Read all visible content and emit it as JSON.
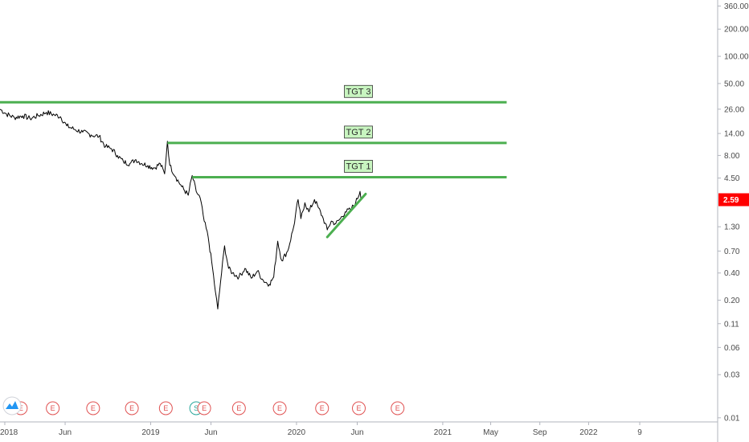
{
  "chart_data": {
    "type": "line",
    "scale": "log",
    "ylim": [
      0.009,
      420
    ],
    "xlim": [
      "2017-12-20",
      "2022-11-20"
    ],
    "y_ticks": [
      "360.00",
      "200.00",
      "100.00",
      "50.00",
      "26.00",
      "14.00",
      "8.00",
      "4.50",
      "2.59",
      "1.30",
      "0.70",
      "0.40",
      "0.20",
      "0.11",
      "0.06",
      "0.03",
      "0.01"
    ],
    "x_ticks": [
      {
        "label": "2018",
        "date": "2018-01-01"
      },
      {
        "label": "Jun",
        "date": "2018-06-01"
      },
      {
        "label": "2019",
        "date": "2019-01-01"
      },
      {
        "label": "Jun",
        "date": "2019-06-01"
      },
      {
        "label": "2020",
        "date": "2020-01-01"
      },
      {
        "label": "Jun",
        "date": "2020-06-01"
      },
      {
        "label": "2021",
        "date": "2021-01-01"
      },
      {
        "label": "May",
        "date": "2021-05-01"
      },
      {
        "label": "Sep",
        "date": "2021-09-01"
      },
      {
        "label": "2022",
        "date": "2022-01-01"
      },
      {
        "label": "9",
        "date": "2022-05-09"
      }
    ],
    "series": [
      {
        "color": "#000000",
        "points": [
          [
            "2017-12-20",
            26
          ],
          [
            "2018-01-05",
            23
          ],
          [
            "2018-01-25",
            21
          ],
          [
            "2018-02-15",
            22
          ],
          [
            "2018-03-05",
            20.5
          ],
          [
            "2018-03-25",
            22
          ],
          [
            "2018-04-15",
            24
          ],
          [
            "2018-05-05",
            22.5
          ],
          [
            "2018-05-20",
            21.5
          ],
          [
            "2018-06-05",
            17
          ],
          [
            "2018-06-25",
            15.5
          ],
          [
            "2018-07-15",
            14.5
          ],
          [
            "2018-08-05",
            13.5
          ],
          [
            "2018-08-25",
            13
          ],
          [
            "2018-09-10",
            10
          ],
          [
            "2018-09-25",
            9.5
          ],
          [
            "2018-10-10",
            8
          ],
          [
            "2018-10-25",
            6.8
          ],
          [
            "2018-11-10",
            6.5
          ],
          [
            "2018-11-25",
            7.2
          ],
          [
            "2018-12-10",
            6.5
          ],
          [
            "2018-12-25",
            6.2
          ],
          [
            "2019-01-10",
            5.8
          ],
          [
            "2019-01-25",
            6.5
          ],
          [
            "2019-02-05",
            5
          ],
          [
            "2019-02-12",
            11.5
          ],
          [
            "2019-02-18",
            6.2
          ],
          [
            "2019-03-05",
            4.6
          ],
          [
            "2019-03-20",
            3.6
          ],
          [
            "2019-04-05",
            2.9
          ],
          [
            "2019-04-15",
            4.8
          ],
          [
            "2019-04-25",
            3.2
          ],
          [
            "2019-05-05",
            2.7
          ],
          [
            "2019-05-15",
            1.5
          ],
          [
            "2019-05-25",
            1.0
          ],
          [
            "2019-06-05",
            0.45
          ],
          [
            "2019-06-12",
            0.25
          ],
          [
            "2019-06-18",
            0.16
          ],
          [
            "2019-06-25",
            0.32
          ],
          [
            "2019-07-05",
            0.8
          ],
          [
            "2019-07-15",
            0.45
          ],
          [
            "2019-07-25",
            0.4
          ],
          [
            "2019-08-10",
            0.36
          ],
          [
            "2019-08-25",
            0.45
          ],
          [
            "2019-09-10",
            0.35
          ],
          [
            "2019-09-25",
            0.42
          ],
          [
            "2019-10-10",
            0.33
          ],
          [
            "2019-10-25",
            0.3
          ],
          [
            "2019-11-05",
            0.36
          ],
          [
            "2019-11-15",
            0.9
          ],
          [
            "2019-11-25",
            0.55
          ],
          [
            "2019-12-10",
            0.7
          ],
          [
            "2019-12-25",
            1.3
          ],
          [
            "2020-01-05",
            2.6
          ],
          [
            "2020-01-12",
            1.6
          ],
          [
            "2020-01-22",
            2.4
          ],
          [
            "2020-02-01",
            1.9
          ],
          [
            "2020-02-15",
            2.6
          ],
          [
            "2020-02-25",
            2.1
          ],
          [
            "2020-03-08",
            1.6
          ],
          [
            "2020-03-18",
            1.2
          ],
          [
            "2020-03-28",
            1.5
          ],
          [
            "2020-04-08",
            1.4
          ],
          [
            "2020-04-20",
            1.6
          ],
          [
            "2020-05-02",
            1.9
          ],
          [
            "2020-05-15",
            2.0
          ],
          [
            "2020-05-28",
            2.4
          ],
          [
            "2020-06-08",
            3.2
          ],
          [
            "2020-06-12",
            2.59
          ]
        ]
      }
    ],
    "targets": [
      {
        "label": "TGT 3",
        "value": 31,
        "start": "2017-12-20",
        "end": "2021-06-10"
      },
      {
        "label": "TGT 2",
        "value": 11,
        "start": "2019-02-12",
        "end": "2021-06-10"
      },
      {
        "label": "TGT 1",
        "value": 4.6,
        "start": "2019-04-15",
        "end": "2021-06-10"
      }
    ],
    "trendline": {
      "from": [
        "2020-03-18",
        1.0
      ],
      "to": [
        "2020-06-22",
        3.0
      ]
    },
    "last_price": {
      "label": "2.59",
      "value": 2.59,
      "color": "#ff0000"
    },
    "event_markers": [
      {
        "type": "E",
        "date": "2018-02-10",
        "color": "#e05252"
      },
      {
        "type": "E",
        "date": "2018-05-01",
        "color": "#e05252"
      },
      {
        "type": "E",
        "date": "2018-08-10",
        "color": "#e05252"
      },
      {
        "type": "E",
        "date": "2018-11-15",
        "color": "#e05252"
      },
      {
        "type": "E",
        "date": "2019-02-08",
        "color": "#e05252"
      },
      {
        "type": "S",
        "date": "2019-04-25",
        "color": "#26a69a"
      },
      {
        "type": "E",
        "date": "2019-05-15",
        "color": "#e05252"
      },
      {
        "type": "E",
        "date": "2019-08-10",
        "color": "#e05252"
      },
      {
        "type": "E",
        "date": "2019-11-20",
        "color": "#e05252"
      },
      {
        "type": "E",
        "date": "2020-03-05",
        "color": "#e05252"
      },
      {
        "type": "E",
        "date": "2020-06-05",
        "color": "#e05252"
      },
      {
        "type": "E",
        "date": "2020-09-10",
        "color": "#e05252"
      }
    ],
    "colors": {
      "target_line": "#4caf50",
      "target_label_bg": "#c8f5c0",
      "axis_line": "#b2b5be",
      "tick_text": "#4a4a4a",
      "logo": "#2196f3"
    }
  }
}
